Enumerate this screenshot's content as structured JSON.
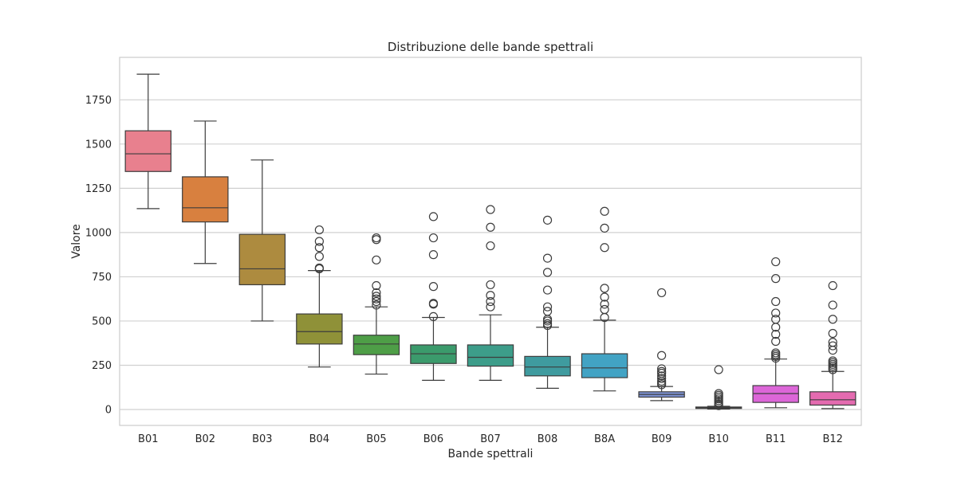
{
  "chart_data": {
    "type": "boxplot",
    "title": "Distribuzione delle bande spettrali",
    "xlabel": "Bande spettrali",
    "ylabel": "Valore",
    "ylim": [
      -90,
      1990
    ],
    "yticks": [
      0,
      250,
      500,
      750,
      1000,
      1250,
      1500,
      1750
    ],
    "grid": true,
    "categories": [
      "B01",
      "B02",
      "B03",
      "B04",
      "B05",
      "B06",
      "B07",
      "B08",
      "B8A",
      "B09",
      "B10",
      "B11",
      "B12"
    ],
    "colors": [
      "#e8808e",
      "#d8803f",
      "#ad8b3f",
      "#8f9138",
      "#4e9e47",
      "#3b9b6c",
      "#3d9d8a",
      "#3f9b9f",
      "#42a3c4",
      "#7f95d8",
      "#b187d8",
      "#dc66d8",
      "#e46bb0"
    ],
    "boxes": [
      {
        "whislo": 1135,
        "q1": 1345,
        "med": 1445,
        "q3": 1575,
        "whishi": 1895,
        "fliers": []
      },
      {
        "whislo": 825,
        "q1": 1060,
        "med": 1140,
        "q3": 1315,
        "whishi": 1630,
        "fliers": []
      },
      {
        "whislo": 500,
        "q1": 705,
        "med": 795,
        "q3": 990,
        "whishi": 1410,
        "fliers": []
      },
      {
        "whislo": 240,
        "q1": 370,
        "med": 440,
        "q3": 540,
        "whishi": 785,
        "fliers": [
          795,
          800,
          865,
          915,
          950,
          1015
        ]
      },
      {
        "whislo": 200,
        "q1": 310,
        "med": 370,
        "q3": 420,
        "whishi": 580,
        "fliers": [
          590,
          610,
          625,
          640,
          660,
          700,
          845,
          960,
          970
        ]
      },
      {
        "whislo": 165,
        "q1": 260,
        "med": 315,
        "q3": 365,
        "whishi": 520,
        "fliers": [
          525,
          595,
          600,
          695,
          875,
          970,
          1090
        ]
      },
      {
        "whislo": 165,
        "q1": 245,
        "med": 295,
        "q3": 365,
        "whishi": 535,
        "fliers": [
          580,
          610,
          645,
          705,
          925,
          1030,
          1130
        ]
      },
      {
        "whislo": 120,
        "q1": 190,
        "med": 240,
        "q3": 300,
        "whishi": 465,
        "fliers": [
          475,
          485,
          500,
          510,
          555,
          580,
          675,
          775,
          855,
          1070
        ]
      },
      {
        "whislo": 105,
        "q1": 180,
        "med": 235,
        "q3": 315,
        "whishi": 505,
        "fliers": [
          520,
          565,
          595,
          635,
          685,
          915,
          1025,
          1120
        ]
      },
      {
        "whislo": 50,
        "q1": 70,
        "med": 85,
        "q3": 100,
        "whishi": 130,
        "fliers": [
          140,
          150,
          160,
          175,
          190,
          205,
          215,
          230,
          305,
          660
        ]
      },
      {
        "whislo": 3,
        "q1": 6,
        "med": 9,
        "q3": 14,
        "whishi": 18,
        "fliers": [
          22,
          30,
          40,
          50,
          60,
          70,
          80,
          90,
          225
        ]
      },
      {
        "whislo": 10,
        "q1": 40,
        "med": 90,
        "q3": 135,
        "whishi": 285,
        "fliers": [
          290,
          300,
          310,
          320,
          385,
          425,
          465,
          510,
          545,
          610,
          740,
          835
        ]
      },
      {
        "whislo": 5,
        "q1": 25,
        "med": 55,
        "q3": 100,
        "whishi": 215,
        "fliers": [
          225,
          235,
          245,
          255,
          265,
          275,
          335,
          360,
          380,
          430,
          510,
          590,
          700
        ]
      }
    ]
  }
}
